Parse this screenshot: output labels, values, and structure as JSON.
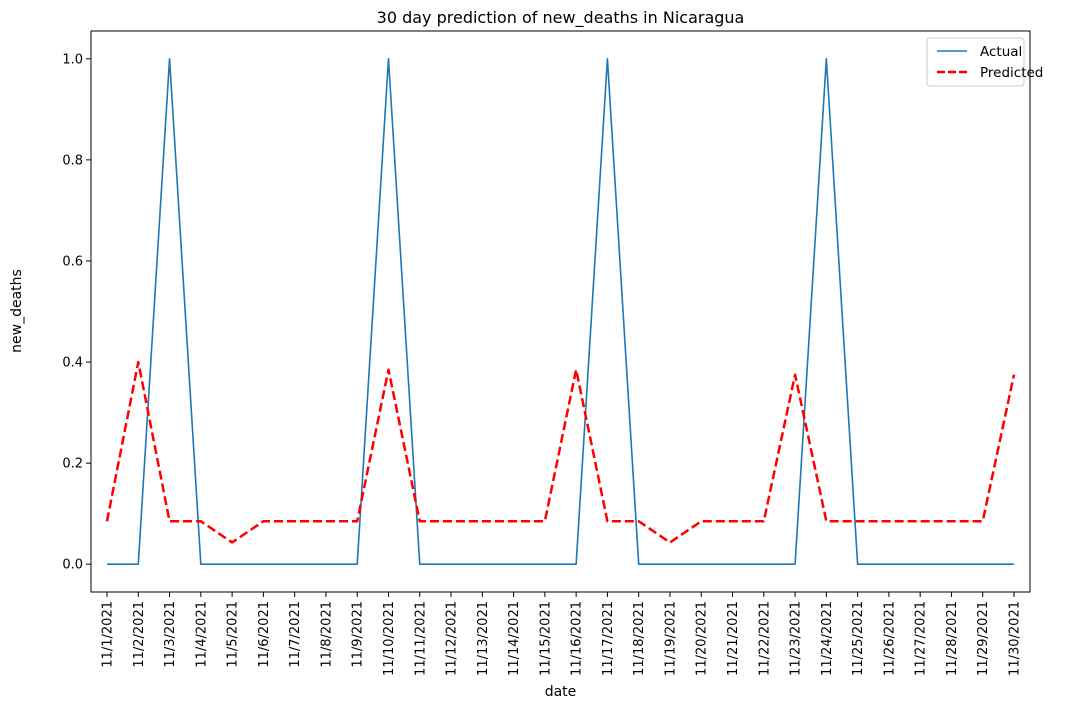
{
  "chart_data": {
    "type": "line",
    "title": "30 day prediction of new_deaths in Nicaragua",
    "xlabel": "date",
    "ylabel": "new_deaths",
    "ylim": [
      -0.055,
      1.055
    ],
    "yticks": [
      "0.0",
      "0.2",
      "0.4",
      "0.6",
      "0.8",
      "1.0"
    ],
    "legend_position": "top-right",
    "grid": false,
    "x": [
      "11/1/2021",
      "11/2/2021",
      "11/3/2021",
      "11/4/2021",
      "11/5/2021",
      "11/6/2021",
      "11/7/2021",
      "11/8/2021",
      "11/9/2021",
      "11/10/2021",
      "11/11/2021",
      "11/12/2021",
      "11/13/2021",
      "11/14/2021",
      "11/15/2021",
      "11/16/2021",
      "11/17/2021",
      "11/18/2021",
      "11/19/2021",
      "11/20/2021",
      "11/21/2021",
      "11/22/2021",
      "11/23/2021",
      "11/24/2021",
      "11/25/2021",
      "11/26/2021",
      "11/27/2021",
      "11/28/2021",
      "11/29/2021",
      "11/30/2021"
    ],
    "series": [
      {
        "name": "Actual",
        "color": "#1f77b4",
        "style": "solid",
        "values": [
          0,
          0,
          1,
          0,
          0,
          0,
          0,
          0,
          0,
          1,
          0,
          0,
          0,
          0,
          0,
          0,
          1,
          0,
          0,
          0,
          0,
          0,
          0,
          1,
          0,
          0,
          0,
          0,
          0,
          0
        ]
      },
      {
        "name": "Predicted",
        "color": "#ff0000",
        "style": "dashed",
        "values": [
          0.085,
          0.4,
          0.085,
          0.085,
          0.043,
          0.085,
          0.085,
          0.085,
          0.085,
          0.385,
          0.085,
          0.085,
          0.085,
          0.085,
          0.085,
          0.385,
          0.085,
          0.085,
          0.043,
          0.085,
          0.085,
          0.085,
          0.375,
          0.085,
          0.085,
          0.085,
          0.085,
          0.085,
          0.085,
          0.375
        ]
      }
    ]
  }
}
